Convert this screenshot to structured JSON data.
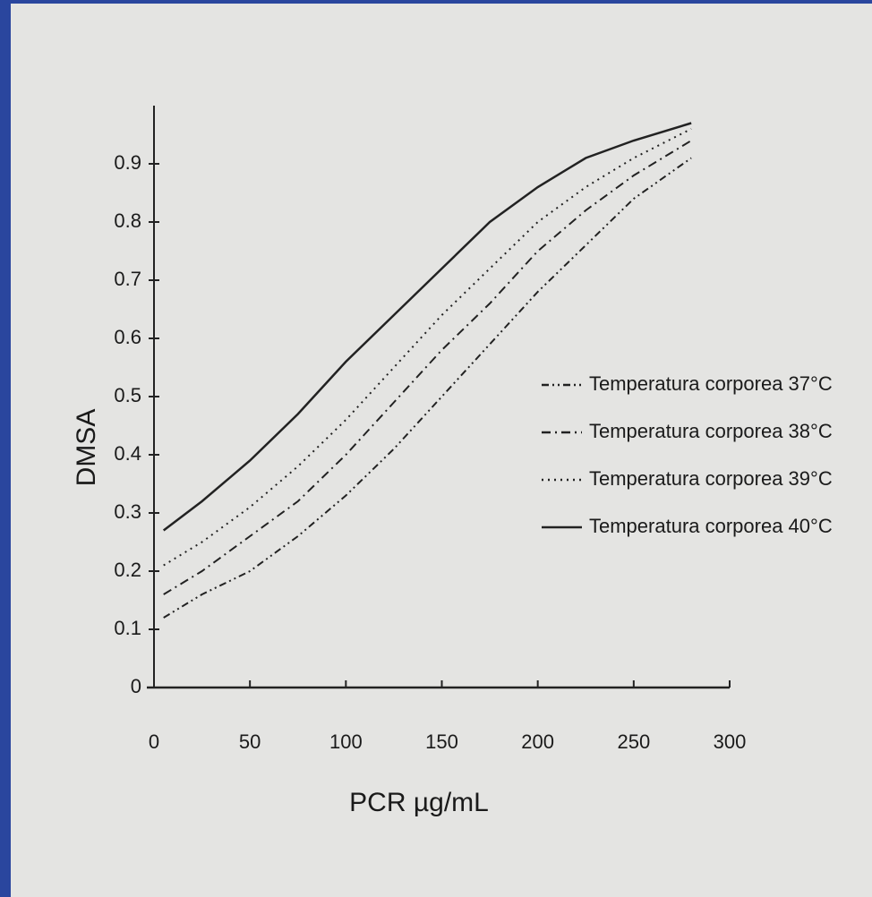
{
  "chart_data": {
    "type": "line",
    "x_label": "PCR µg/mL",
    "y_label": "DMSA",
    "x": [
      5,
      25,
      50,
      75,
      100,
      125,
      150,
      175,
      200,
      225,
      250,
      280
    ],
    "series": [
      {
        "name": "Temperatura corporea 37°C",
        "color": "#222222",
        "linestyle": "dashdotdot",
        "values": [
          0.12,
          0.16,
          0.2,
          0.26,
          0.33,
          0.41,
          0.5,
          0.59,
          0.68,
          0.76,
          0.84,
          0.91
        ]
      },
      {
        "name": "Temperatura corporea 38°C",
        "color": "#222222",
        "linestyle": "dashdot",
        "values": [
          0.16,
          0.2,
          0.26,
          0.32,
          0.4,
          0.49,
          0.58,
          0.66,
          0.75,
          0.82,
          0.88,
          0.94
        ]
      },
      {
        "name": "Temperatura corporea 39°C",
        "color": "#222222",
        "linestyle": "dotted",
        "values": [
          0.21,
          0.25,
          0.31,
          0.38,
          0.46,
          0.55,
          0.64,
          0.72,
          0.8,
          0.86,
          0.91,
          0.96
        ]
      },
      {
        "name": "Temperatura corporea 40°C",
        "color": "#222222",
        "linestyle": "solid",
        "values": [
          0.27,
          0.32,
          0.39,
          0.47,
          0.56,
          0.64,
          0.72,
          0.8,
          0.86,
          0.91,
          0.94,
          0.97
        ]
      }
    ],
    "xlim": [
      0,
      300
    ],
    "xticks": [
      0,
      50,
      100,
      150,
      200,
      250,
      300
    ],
    "ylim": [
      0,
      1
    ],
    "yticks": [
      0,
      0.1,
      0.2,
      0.3,
      0.4,
      0.5,
      0.6,
      0.7,
      0.8,
      0.9
    ],
    "grid": false,
    "legend": "right"
  }
}
